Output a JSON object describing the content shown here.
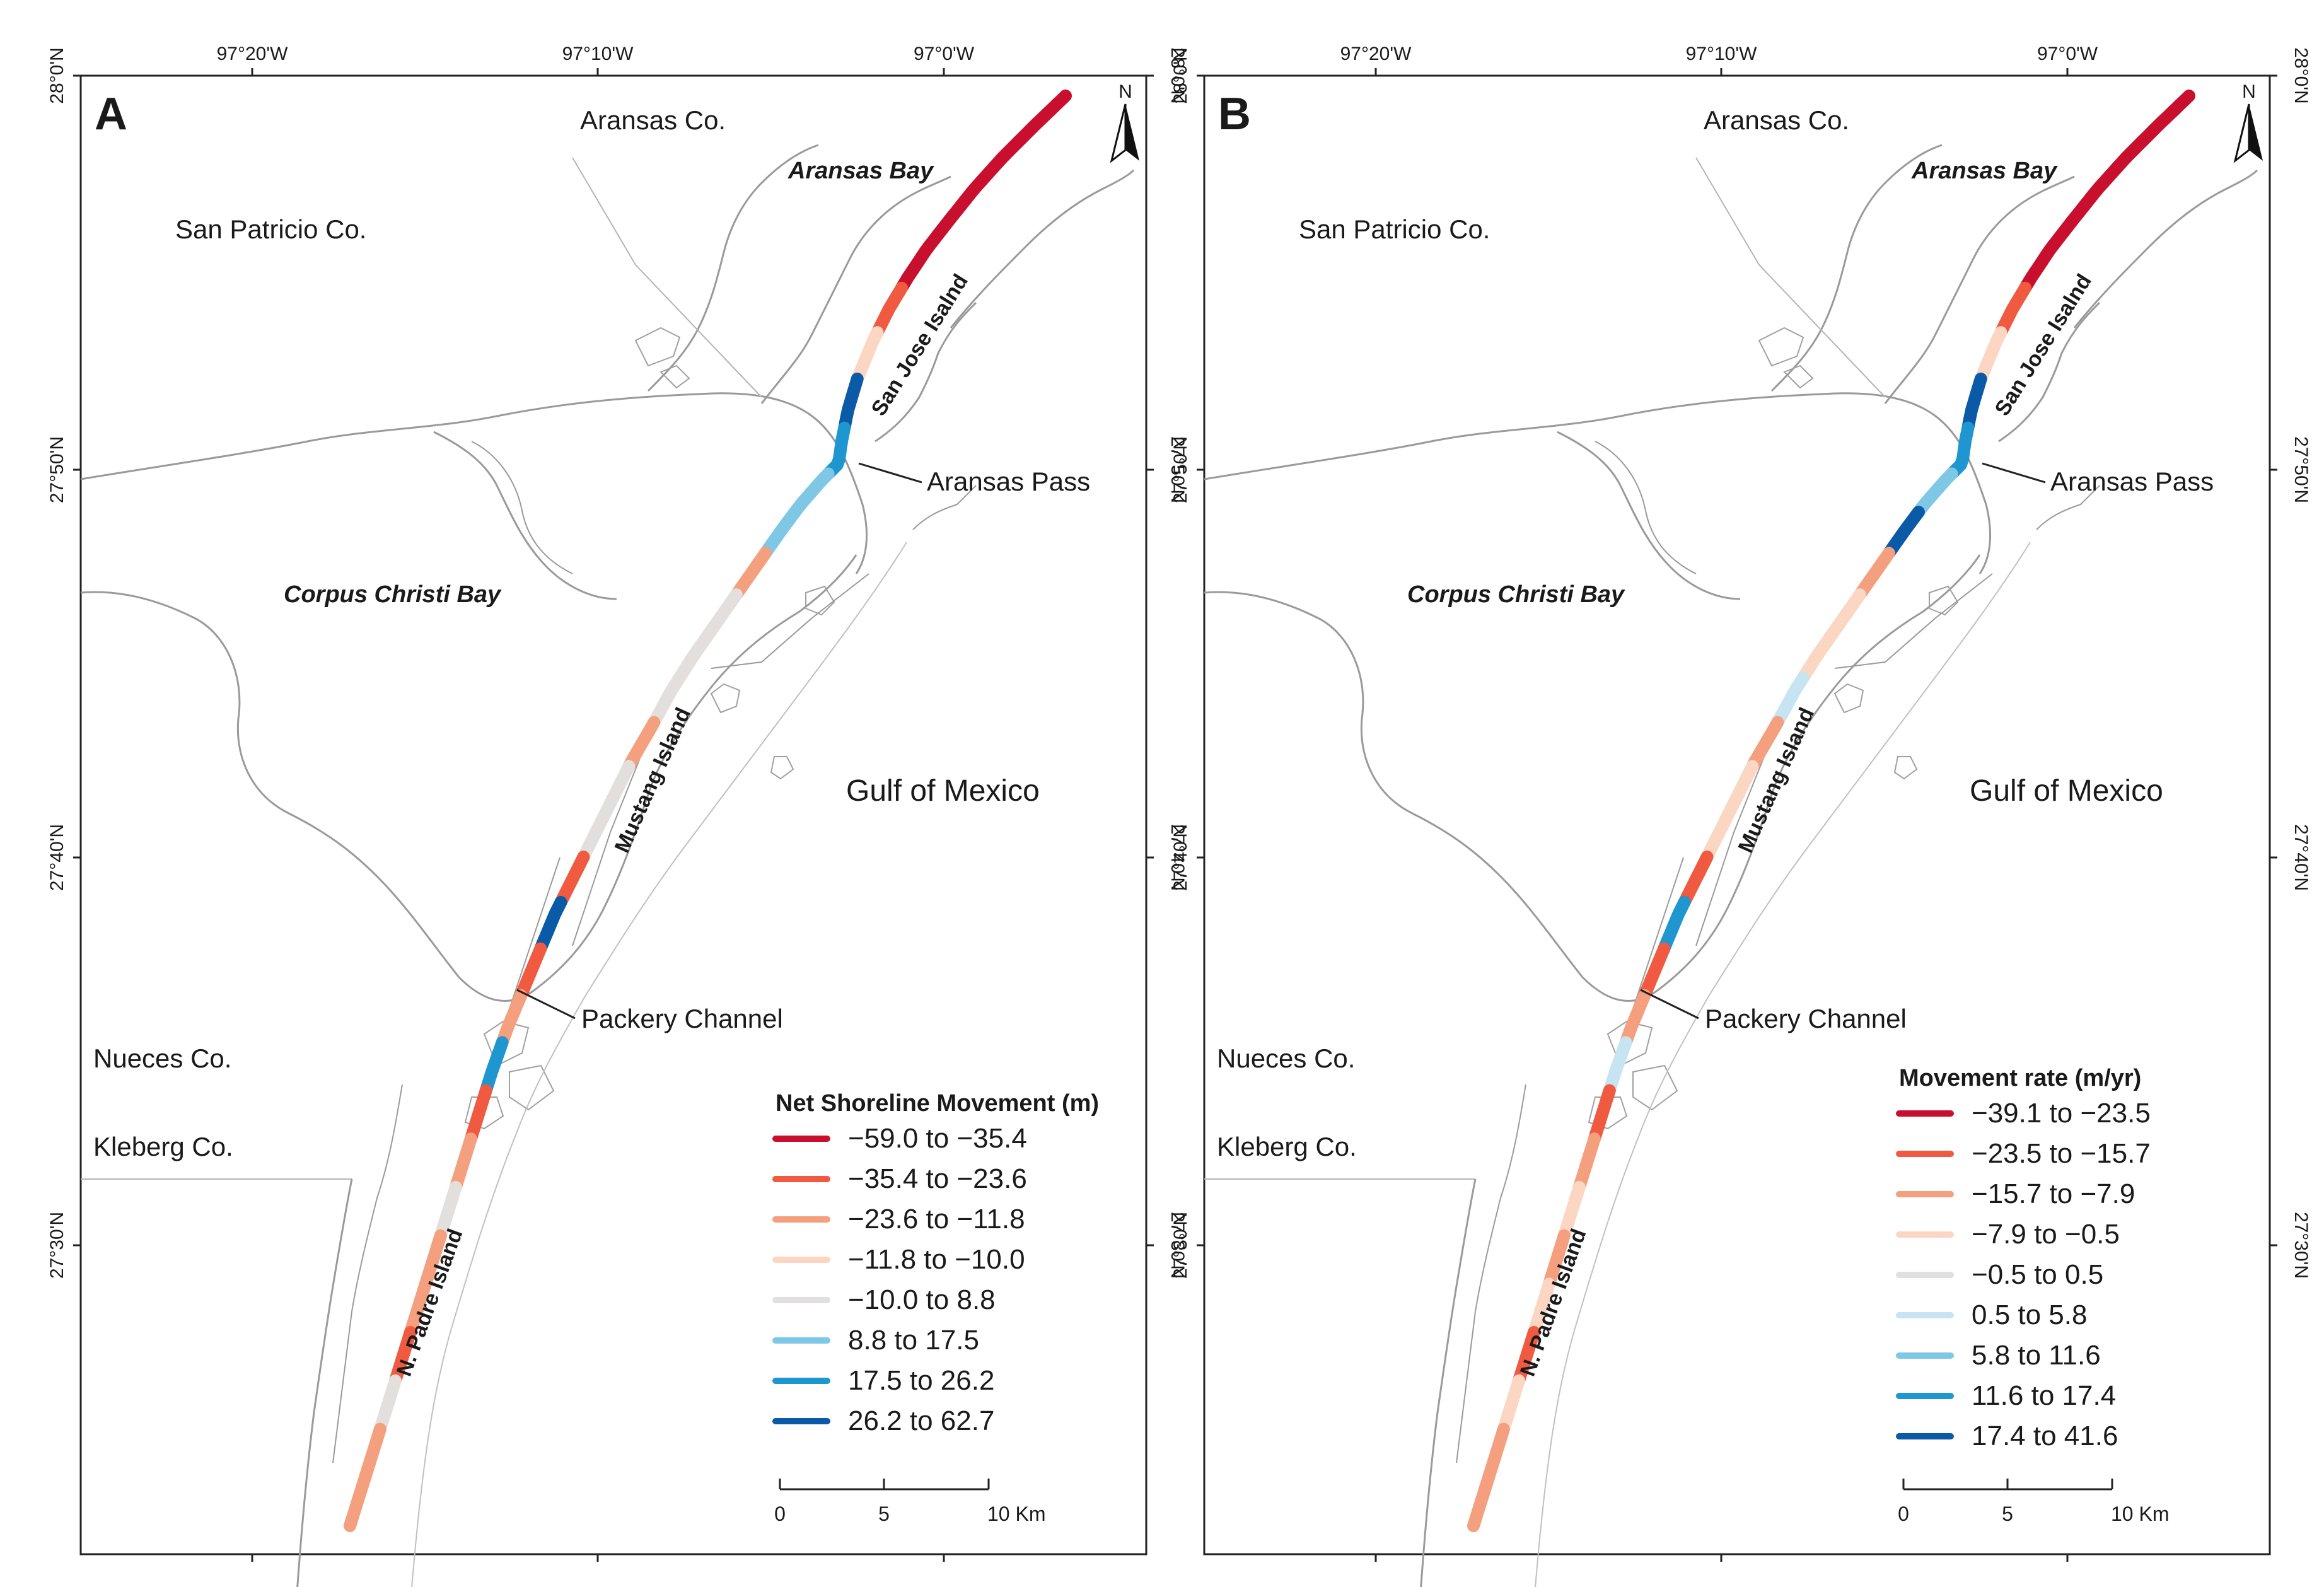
{
  "panels": [
    {
      "letter": "A",
      "labels": {
        "aransas_co": "Aransas Co.",
        "aransas_bay": "Aransas Bay",
        "san_patricio_co": "San Patricio Co.",
        "san_jose_island": "San Jose Isalnd",
        "aransas_pass": "Aransas Pass",
        "corpus_christi_bay": "Corpus Christi Bay",
        "mustang_island": "Mustang Island",
        "gulf_of_mexico": "Gulf of Mexico",
        "packery_channel": "Packery Channel",
        "nueces_co": "Nueces Co.",
        "kleberg_co": "Kleberg Co.",
        "n_padre_island": "N. Padre Island"
      },
      "x_ticks": [
        "97°20'W",
        "97°10'W",
        "97°0'W"
      ],
      "y_ticks": [
        "28°0'N",
        "27°50'N",
        "27°40'N",
        "27°30'N"
      ],
      "north_arrow": "N",
      "legend": {
        "title": "Net Shoreline Movement (m)",
        "items": [
          {
            "label": "−59.0 to −35.4",
            "color": "#c8102e"
          },
          {
            "label": "−35.4 to −23.6",
            "color": "#ef5a40"
          },
          {
            "label": "−23.6 to −11.8",
            "color": "#f4a07f"
          },
          {
            "label": "−11.8 to −10.0",
            "color": "#fbd6c2"
          },
          {
            "label": "−10.0 to 8.8",
            "color": "#e3dfdc"
          },
          {
            "label": "8.8 to 17.5",
            "color": "#7ec8e6"
          },
          {
            "label": "17.5 to 26.2",
            "color": "#1e96cf"
          },
          {
            "label": "26.2 to 62.7",
            "color": "#0a5aa8"
          }
        ]
      },
      "scale_bar": {
        "ticks": [
          "0",
          "5",
          "10 Km"
        ]
      },
      "shoreline_segments": [
        "#c8102e",
        "#c8102e",
        "#c8102e",
        "#c8102e",
        "#c8102e",
        "#ef5a40",
        "#fbd6c2",
        "#0a5aa8",
        "#1e96cf",
        "#7ec8e6",
        "#7ec8e6",
        "#f4a07f",
        "#e3dfdc",
        "#e3dfdc",
        "#e3dfdc",
        "#f4a07f",
        "#e3dfdc",
        "#e3dfdc",
        "#ef5a40",
        "#0a5aa8",
        "#ef5a40",
        "#f4a07f",
        "#1e96cf",
        "#ef5a40",
        "#f4a07f",
        "#e3dfdc",
        "#f4a07f",
        "#f4a07f",
        "#ef5a40",
        "#e3dfdc",
        "#f4a07f",
        "#f4a07f"
      ]
    },
    {
      "letter": "B",
      "labels": {
        "aransas_co": "Aransas Co.",
        "aransas_bay": "Aransas Bay",
        "san_patricio_co": "San Patricio Co.",
        "san_jose_island": "San Jose Isalnd",
        "aransas_pass": "Aransas Pass",
        "corpus_christi_bay": "Corpus Christi Bay",
        "mustang_island": "Mustang Island",
        "gulf_of_mexico": "Gulf of Mexico",
        "packery_channel": "Packery Channel",
        "nueces_co": "Nueces Co.",
        "kleberg_co": "Kleberg Co.",
        "n_padre_island": "N. Padre Island"
      },
      "x_ticks": [
        "97°20'W",
        "97°10'W",
        "97°0'W"
      ],
      "y_ticks": [
        "28°0'N",
        "27°50'N",
        "27°40'N",
        "27°30'N"
      ],
      "north_arrow": "N",
      "legend": {
        "title": "Movement rate (m/yr)",
        "items": [
          {
            "label": "−39.1 to −23.5",
            "color": "#c8102e"
          },
          {
            "label": "−23.5 to −15.7",
            "color": "#ef5a40"
          },
          {
            "label": "−15.7 to −7.9",
            "color": "#f4a07f"
          },
          {
            "label": "−7.9 to −0.5",
            "color": "#fbd6c2"
          },
          {
            "label": "−0.5 to 0.5",
            "color": "#e3dfdc"
          },
          {
            "label": "0.5 to 5.8",
            "color": "#c6e4f2"
          },
          {
            "label": "5.8 to 11.6",
            "color": "#7ec8e6"
          },
          {
            "label": "11.6 to 17.4",
            "color": "#1e96cf"
          },
          {
            "label": "17.4 to 41.6",
            "color": "#0a5aa8"
          }
        ]
      },
      "scale_bar": {
        "ticks": [
          "0",
          "5",
          "10 Km"
        ]
      },
      "shoreline_segments": [
        "#c8102e",
        "#c8102e",
        "#c8102e",
        "#c8102e",
        "#c8102e",
        "#ef5a40",
        "#fbd6c2",
        "#0a5aa8",
        "#1e96cf",
        "#7ec8e6",
        "#0a5aa8",
        "#f4a07f",
        "#fbd6c2",
        "#fbd6c2",
        "#c6e4f2",
        "#f4a07f",
        "#fbd6c2",
        "#fbd6c2",
        "#ef5a40",
        "#1e96cf",
        "#ef5a40",
        "#f4a07f",
        "#c6e4f2",
        "#ef5a40",
        "#f4a07f",
        "#fbd6c2",
        "#f4a07f",
        "#fbd6c2",
        "#ef5a40",
        "#fbd6c2",
        "#f4a07f",
        "#f4a07f"
      ]
    }
  ]
}
